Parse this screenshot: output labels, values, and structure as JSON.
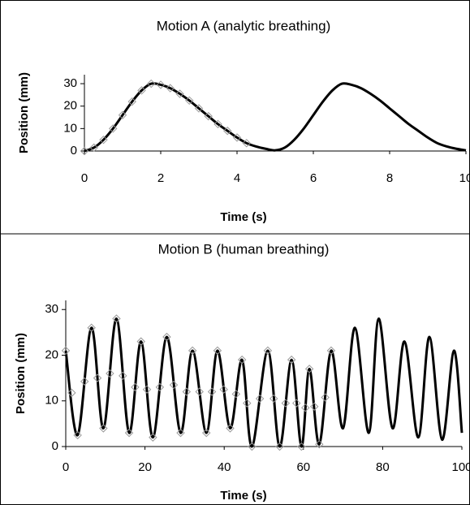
{
  "chart_data": [
    {
      "type": "line",
      "title": "Motion A (analytic breathing)",
      "x_label": "Time (s)",
      "y_label": "Position (mm)",
      "xlim": [
        0,
        10
      ],
      "ylim": [
        0,
        34
      ],
      "xticks": [
        0,
        2,
        4,
        6,
        8,
        10
      ],
      "yticks": [
        0,
        10,
        20,
        30
      ],
      "series": [
        {
          "style": "line",
          "color": "#000000",
          "x": [
            0,
            0.25,
            0.5,
            0.75,
            1,
            1.25,
            1.5,
            1.75,
            2,
            2.25,
            2.5,
            2.75,
            3,
            3.25,
            3.5,
            3.75,
            4,
            4.25,
            4.5,
            4.75,
            5,
            5.25,
            5.5,
            5.75,
            6,
            6.25,
            6.5,
            6.75,
            7,
            7.25,
            7.5,
            7.75,
            8,
            8.25,
            8.5,
            8.75,
            9,
            9.25,
            9.5,
            9.75,
            10
          ],
          "values": [
            0,
            1.5,
            5,
            10,
            16,
            22,
            27,
            30,
            29.5,
            28,
            25.5,
            22.5,
            19,
            15.5,
            12,
            9,
            6,
            3.5,
            2,
            1,
            0.3,
            1.5,
            5,
            10,
            16,
            22,
            27,
            30,
            29.5,
            28,
            25.5,
            22.5,
            19,
            15.5,
            12,
            9,
            6,
            3.5,
            2,
            1,
            0.3
          ]
        },
        {
          "style": "diamond",
          "color": "#999999",
          "x": [
            0,
            0.25,
            0.5,
            0.75,
            1,
            1.25,
            1.5,
            1.75,
            2,
            2.25,
            2.5,
            2.75,
            3,
            3.25,
            3.5,
            3.75,
            4,
            4.25
          ],
          "values": [
            0,
            1.5,
            5,
            10,
            16,
            22,
            27,
            30,
            29.5,
            28,
            25.5,
            22.5,
            19,
            15.5,
            12,
            9,
            6,
            3.5
          ]
        }
      ]
    },
    {
      "type": "line",
      "title": "Motion B (human breathing)",
      "x_label": "Time (s)",
      "y_label": "Position (mm)",
      "xlim": [
        0,
        100
      ],
      "ylim": [
        0,
        32
      ],
      "xticks": [
        0,
        20,
        40,
        60,
        80,
        100
      ],
      "yticks": [
        0,
        10,
        20,
        30
      ],
      "series": [
        {
          "style": "line",
          "color": "#000000",
          "x": [
            0,
            3,
            6.5,
            9.5,
            12.8,
            16,
            19,
            22,
            25.5,
            29,
            32,
            35.5,
            38.3,
            41.5,
            44.5,
            47,
            51,
            54,
            57,
            59.5,
            61.5,
            64,
            67,
            70,
            73,
            76.5,
            79,
            82.5,
            85.5,
            89,
            91.8,
            95,
            98,
            100
          ],
          "values": [
            21,
            2.5,
            26,
            4,
            28,
            3,
            23,
            2,
            24,
            3,
            21,
            3,
            21,
            4,
            19,
            0,
            21,
            0,
            19,
            0,
            17,
            0.5,
            21,
            4,
            26,
            3,
            28,
            4,
            23,
            2,
            24,
            1.5,
            21,
            3
          ]
        },
        {
          "style": "diamond",
          "color": "#999999",
          "x": [
            0,
            1.5,
            3,
            4.75,
            6.5,
            8,
            9.5,
            11.15,
            12.8,
            14.4,
            16,
            17.5,
            19,
            20.5,
            22,
            23.75,
            25.5,
            27.25,
            29,
            30.5,
            32,
            33.75,
            35.5,
            36.9,
            38.3,
            39.9,
            41.5,
            43,
            44.5,
            45.75,
            47,
            49,
            51,
            52.5,
            54,
            55.5,
            57,
            58.25,
            59.5,
            60.5,
            61.5,
            62.75,
            64,
            65.5,
            67
          ],
          "values": [
            21,
            11.75,
            2.5,
            14.25,
            26,
            15,
            4,
            16,
            28,
            15.5,
            3,
            13,
            23,
            12.5,
            2,
            13,
            24,
            13.5,
            3,
            12,
            21,
            12,
            3,
            12,
            21,
            12.5,
            4,
            11.5,
            19,
            9.5,
            0,
            10.5,
            21,
            10.5,
            0,
            9.5,
            19,
            9.5,
            0,
            8.5,
            17,
            8.75,
            0.5,
            10.75,
            21
          ]
        }
      ]
    }
  ]
}
